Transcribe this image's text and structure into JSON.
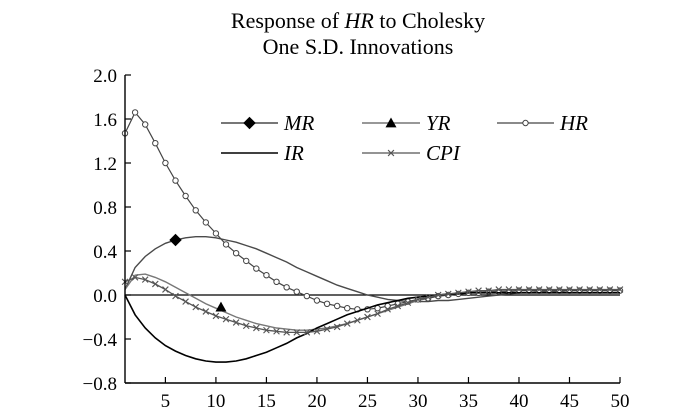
{
  "chart_data": {
    "type": "line",
    "title": [
      "Response of ",
      "HR",
      " to Cholesky",
      "One S.D. Innovations"
    ],
    "xlabel": "",
    "ylabel": "",
    "xlim": [
      1,
      50
    ],
    "ylim": [
      -0.8,
      2.0
    ],
    "xticks": [
      5,
      10,
      15,
      20,
      25,
      30,
      35,
      40,
      45,
      50
    ],
    "yticks": [
      -0.8,
      -0.4,
      0.0,
      0.4,
      0.8,
      1.2,
      1.6,
      2.0
    ],
    "ytick_labels": [
      "−0.8",
      "−0.4",
      "0.0",
      "0.4",
      "0.8",
      "1.2",
      "1.6",
      "2.0"
    ],
    "x": [
      1,
      2,
      3,
      4,
      5,
      6,
      7,
      8,
      9,
      10,
      11,
      12,
      13,
      14,
      15,
      16,
      17,
      18,
      19,
      20,
      21,
      22,
      23,
      24,
      25,
      26,
      27,
      28,
      29,
      30,
      31,
      32,
      33,
      34,
      35,
      36,
      37,
      38,
      39,
      40,
      41,
      42,
      43,
      44,
      45,
      46,
      47,
      48,
      49,
      50
    ],
    "series": [
      {
        "name": "MR",
        "marker": "diamond",
        "values": [
          0.05,
          0.25,
          0.35,
          0.42,
          0.47,
          0.5,
          0.52,
          0.53,
          0.53,
          0.52,
          0.5,
          0.48,
          0.45,
          0.42,
          0.38,
          0.34,
          0.3,
          0.25,
          0.21,
          0.17,
          0.13,
          0.09,
          0.06,
          0.03,
          0.0,
          -0.02,
          -0.04,
          -0.05,
          -0.06,
          -0.06,
          -0.06,
          -0.05,
          -0.05,
          -0.04,
          -0.03,
          -0.02,
          -0.01,
          0.0,
          0.01,
          0.02,
          0.02,
          0.03,
          0.03,
          0.03,
          0.04,
          0.04,
          0.04,
          0.04,
          0.04,
          0.04
        ]
      },
      {
        "name": "YR",
        "marker": "triangle",
        "values": [
          0.05,
          0.18,
          0.19,
          0.16,
          0.12,
          0.07,
          0.02,
          -0.03,
          -0.08,
          -0.12,
          -0.16,
          -0.2,
          -0.23,
          -0.26,
          -0.28,
          -0.3,
          -0.31,
          -0.32,
          -0.32,
          -0.31,
          -0.3,
          -0.28,
          -0.26,
          -0.23,
          -0.2,
          -0.17,
          -0.14,
          -0.11,
          -0.08,
          -0.05,
          -0.03,
          -0.01,
          0.0,
          0.01,
          0.02,
          0.03,
          0.03,
          0.04,
          0.04,
          0.04,
          0.04,
          0.04,
          0.04,
          0.04,
          0.04,
          0.04,
          0.04,
          0.04,
          0.04,
          0.04
        ]
      },
      {
        "name": "HR",
        "marker": "circle",
        "values": [
          1.47,
          1.66,
          1.55,
          1.38,
          1.2,
          1.04,
          0.9,
          0.77,
          0.66,
          0.56,
          0.46,
          0.38,
          0.31,
          0.24,
          0.18,
          0.12,
          0.07,
          0.03,
          -0.01,
          -0.05,
          -0.08,
          -0.1,
          -0.12,
          -0.13,
          -0.13,
          -0.12,
          -0.1,
          -0.08,
          -0.06,
          -0.04,
          -0.03,
          -0.01,
          0.0,
          0.01,
          0.02,
          0.02,
          0.03,
          0.03,
          0.03,
          0.04,
          0.04,
          0.04,
          0.04,
          0.04,
          0.04,
          0.04,
          0.04,
          0.04,
          0.04,
          0.04
        ]
      },
      {
        "name": "IR",
        "marker": "none",
        "values": [
          0.0,
          -0.18,
          -0.3,
          -0.39,
          -0.46,
          -0.51,
          -0.55,
          -0.58,
          -0.6,
          -0.61,
          -0.61,
          -0.6,
          -0.58,
          -0.55,
          -0.52,
          -0.48,
          -0.44,
          -0.39,
          -0.35,
          -0.3,
          -0.26,
          -0.22,
          -0.18,
          -0.15,
          -0.12,
          -0.09,
          -0.07,
          -0.05,
          -0.03,
          -0.02,
          -0.01,
          0.0,
          0.01,
          0.01,
          0.02,
          0.02,
          0.02,
          0.02,
          0.02,
          0.02,
          0.02,
          0.02,
          0.02,
          0.02,
          0.02,
          0.02,
          0.02,
          0.02,
          0.02,
          0.02
        ]
      },
      {
        "name": "CPI",
        "marker": "x",
        "values": [
          0.12,
          0.16,
          0.14,
          0.1,
          0.05,
          -0.01,
          -0.06,
          -0.11,
          -0.15,
          -0.19,
          -0.22,
          -0.25,
          -0.28,
          -0.3,
          -0.32,
          -0.33,
          -0.34,
          -0.34,
          -0.34,
          -0.33,
          -0.31,
          -0.29,
          -0.26,
          -0.23,
          -0.2,
          -0.17,
          -0.13,
          -0.1,
          -0.07,
          -0.04,
          -0.02,
          0.0,
          0.01,
          0.02,
          0.03,
          0.04,
          0.04,
          0.05,
          0.05,
          0.05,
          0.05,
          0.05,
          0.05,
          0.05,
          0.05,
          0.05,
          0.05,
          0.05,
          0.05,
          0.05
        ]
      }
    ],
    "annotations": [
      {
        "series": "MR",
        "marker": "diamond",
        "x": 6,
        "y": 0.5
      },
      {
        "series": "YR",
        "marker": "triangle",
        "x": 10.5,
        "y": -0.11
      }
    ],
    "legend_position": "top-right"
  }
}
